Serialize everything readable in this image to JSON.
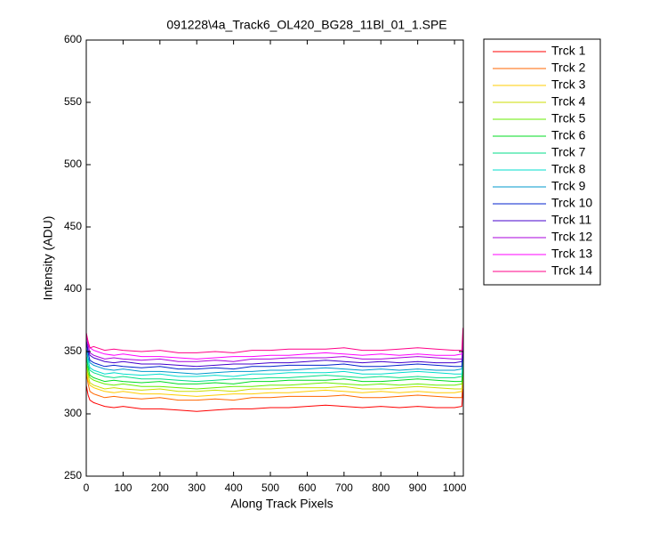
{
  "chart_data": {
    "type": "line",
    "title": "091228\\4a_Track6_OL420_BG28_11Bl_01_1.SPE",
    "x_label": "Along Track Pixels",
    "y_label": "Intensity (ADU)",
    "x": [
      0,
      5,
      10,
      20,
      30,
      50,
      75,
      100,
      150,
      200,
      250,
      300,
      350,
      400,
      450,
      500,
      550,
      600,
      650,
      700,
      750,
      800,
      850,
      900,
      950,
      1000,
      1020,
      1023
    ],
    "xlim": [
      0,
      1024
    ],
    "xticks": [
      0,
      100,
      200,
      300,
      400,
      500,
      600,
      700,
      800,
      900,
      1000
    ],
    "ylim": [
      250,
      600
    ],
    "yticks": [
      250,
      300,
      350,
      400,
      450,
      500,
      550,
      600
    ],
    "legend": "outside-right",
    "series": [
      {
        "name": "Trck 1",
        "color": "#ff0000",
        "values": [
          323,
          315,
          311,
          309,
          308,
          306,
          305,
          306,
          304,
          304,
          303,
          302,
          303,
          304,
          304,
          305,
          305,
          306,
          307,
          306,
          305,
          306,
          305,
          306,
          305,
          305,
          306,
          320
        ]
      },
      {
        "name": "Trck 2",
        "color": "#ff6600",
        "values": [
          333,
          324,
          318,
          316,
          315,
          313,
          314,
          313,
          312,
          313,
          311,
          311,
          312,
          311,
          313,
          313,
          314,
          314,
          314,
          315,
          313,
          313,
          314,
          315,
          314,
          313,
          313,
          331
        ]
      },
      {
        "name": "Trck 3",
        "color": "#ffcc00",
        "values": [
          335,
          327,
          323,
          321,
          320,
          318,
          317,
          318,
          316,
          316,
          315,
          314,
          315,
          316,
          316,
          317,
          317,
          318,
          319,
          318,
          317,
          318,
          317,
          318,
          317,
          317,
          318,
          332
        ]
      },
      {
        "name": "Trck 4",
        "color": "#ccdd00",
        "values": [
          340,
          331,
          325,
          323,
          322,
          320,
          321,
          320,
          319,
          320,
          318,
          318,
          319,
          318,
          320,
          320,
          321,
          321,
          321,
          322,
          320,
          320,
          321,
          322,
          321,
          320,
          320,
          338
        ]
      },
      {
        "name": "Trck 5",
        "color": "#66ee00",
        "values": [
          341,
          333,
          329,
          327,
          326,
          324,
          323,
          324,
          322,
          322,
          321,
          320,
          321,
          322,
          322,
          323,
          323,
          324,
          325,
          324,
          323,
          324,
          323,
          324,
          323,
          323,
          324,
          338
        ]
      },
      {
        "name": "Trck 6",
        "color": "#00dd22",
        "values": [
          346,
          337,
          331,
          329,
          328,
          326,
          327,
          326,
          325,
          326,
          324,
          324,
          325,
          324,
          326,
          326,
          327,
          327,
          327,
          328,
          326,
          326,
          327,
          328,
          327,
          326,
          326,
          344
        ]
      },
      {
        "name": "Trck 7",
        "color": "#00dd88",
        "values": [
          347,
          339,
          335,
          333,
          332,
          330,
          329,
          330,
          328,
          328,
          327,
          326,
          327,
          328,
          328,
          329,
          329,
          330,
          331,
          330,
          329,
          330,
          329,
          330,
          329,
          329,
          330,
          344
        ]
      },
      {
        "name": "Trck 8",
        "color": "#00ddcc",
        "values": [
          352,
          343,
          337,
          335,
          334,
          332,
          333,
          332,
          331,
          332,
          330,
          330,
          331,
          330,
          332,
          332,
          333,
          333,
          333,
          334,
          332,
          332,
          333,
          334,
          333,
          332,
          332,
          350
        ]
      },
      {
        "name": "Trck 9",
        "color": "#0099cc",
        "values": [
          353,
          345,
          341,
          339,
          338,
          336,
          335,
          336,
          334,
          334,
          333,
          332,
          333,
          334,
          334,
          335,
          335,
          336,
          337,
          336,
          335,
          336,
          335,
          336,
          335,
          335,
          336,
          350
        ]
      },
      {
        "name": "Trck 10",
        "color": "#0022cc",
        "values": [
          358,
          349,
          343,
          341,
          340,
          338,
          339,
          338,
          337,
          338,
          336,
          336,
          337,
          336,
          338,
          338,
          339,
          339,
          339,
          340,
          338,
          338,
          339,
          340,
          339,
          338,
          338,
          356
        ]
      },
      {
        "name": "Trck 11",
        "color": "#4400cc",
        "values": [
          359,
          351,
          347,
          345,
          344,
          342,
          341,
          342,
          340,
          340,
          339,
          338,
          339,
          340,
          340,
          341,
          341,
          342,
          343,
          342,
          341,
          342,
          341,
          342,
          341,
          341,
          342,
          356
        ]
      },
      {
        "name": "Trck 12",
        "color": "#aa00dd",
        "values": [
          364,
          355,
          349,
          347,
          346,
          344,
          345,
          344,
          343,
          344,
          342,
          342,
          343,
          342,
          344,
          344,
          345,
          345,
          345,
          346,
          344,
          344,
          345,
          346,
          345,
          344,
          344,
          362
        ]
      },
      {
        "name": "Trck 13",
        "color": "#ff00ff",
        "values": [
          365,
          357,
          353,
          351,
          350,
          348,
          347,
          348,
          346,
          346,
          345,
          344,
          345,
          346,
          346,
          347,
          347,
          348,
          349,
          348,
          347,
          348,
          347,
          348,
          347,
          347,
          348,
          362
        ]
      },
      {
        "name": "Trck 14",
        "color": "#ff0088",
        "values": [
          365,
          358,
          353,
          354,
          353,
          351,
          352,
          351,
          350,
          351,
          349,
          349,
          350,
          349,
          351,
          351,
          352,
          352,
          352,
          353,
          351,
          351,
          352,
          353,
          352,
          351,
          351,
          369
        ]
      }
    ]
  }
}
